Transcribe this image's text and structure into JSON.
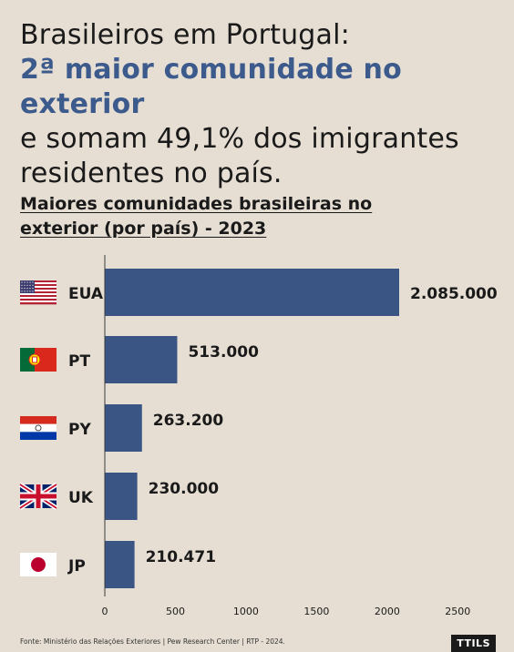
{
  "headline": {
    "line1": "Brasileiros em Portugal:",
    "line2": "2ª maior comunidade no exterior",
    "line3": "e somam 49,1% dos imigrantes",
    "line4": "residentes no país."
  },
  "chart_data": {
    "type": "bar",
    "orientation": "horizontal",
    "title_line1": "Maiores comunidades brasileiras no",
    "title_line2": "exterior (por país) - 2023",
    "categories": [
      "EUA",
      "PT",
      "PY",
      "UK",
      "JP"
    ],
    "flags": [
      "us-flag-icon",
      "portugal-flag-icon",
      "paraguay-flag-icon",
      "uk-flag-icon",
      "japan-flag-icon"
    ],
    "values": [
      2085000,
      513000,
      263200,
      230000,
      210471
    ],
    "value_labels": [
      "2.085.000",
      "513.000",
      "263.200",
      "230.000",
      "210.471"
    ],
    "x_ticks": [
      0,
      500,
      1000,
      1500,
      2000,
      2500
    ],
    "x_tick_labels": [
      "0",
      "500",
      "1000",
      "1500",
      "2000",
      "2500"
    ],
    "xlim": [
      0,
      2500
    ],
    "bar_color": "#3a5584",
    "grid": false
  },
  "footer": {
    "source": "Fonte: Ministério das Relações Exteriores | Pew Research Center | RTP - 2024.",
    "logo": "TTILS"
  }
}
